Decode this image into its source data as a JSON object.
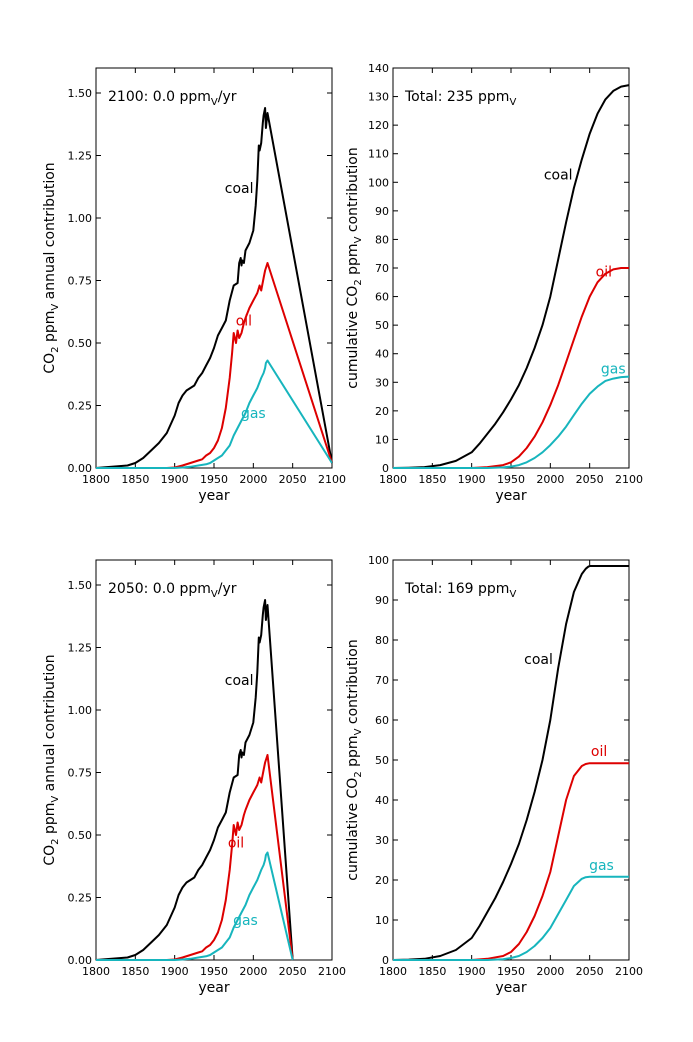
{
  "chart_data": [
    {
      "type": "line",
      "id": "top-left",
      "annotation_prefix": "2100: 0.0 ppm",
      "annotation_suffix": "/yr",
      "xlabel": "year",
      "ylabel_parts": [
        "CO",
        "2",
        " ppm",
        "V",
        " annual contribution"
      ],
      "xlim": [
        1800,
        2100
      ],
      "ylim": [
        0,
        1.6
      ],
      "xticks": [
        1800,
        1850,
        1900,
        1950,
        2000,
        2050,
        2100
      ],
      "yticks": [
        0,
        0.25,
        0.5,
        0.75,
        1.0,
        1.25,
        1.5
      ],
      "ytick_labels": [
        "0.00",
        "0.25",
        "0.50",
        "0.75",
        "1.00",
        "1.25",
        "1.50"
      ],
      "series": [
        {
          "name": "coal",
          "color": "#000000",
          "label_pos": [
            1982,
            1.1
          ],
          "x": [
            1800,
            1820,
            1840,
            1850,
            1860,
            1870,
            1880,
            1890,
            1900,
            1905,
            1910,
            1915,
            1920,
            1925,
            1930,
            1935,
            1940,
            1945,
            1950,
            1955,
            1960,
            1965,
            1970,
            1975,
            1980,
            1982,
            1984,
            1985,
            1986,
            1988,
            1990,
            1995,
            2000,
            2003,
            2005,
            2007,
            2008,
            2010,
            2012,
            2013,
            2015,
            2016,
            2018,
            2100
          ],
          "y": [
            0,
            0.005,
            0.01,
            0.02,
            0.04,
            0.07,
            0.1,
            0.14,
            0.21,
            0.26,
            0.29,
            0.31,
            0.32,
            0.33,
            0.36,
            0.38,
            0.41,
            0.44,
            0.48,
            0.53,
            0.56,
            0.59,
            0.67,
            0.73,
            0.74,
            0.82,
            0.84,
            0.81,
            0.83,
            0.82,
            0.87,
            0.9,
            0.95,
            1.05,
            1.15,
            1.29,
            1.27,
            1.3,
            1.38,
            1.41,
            1.44,
            1.36,
            1.42,
            0.02
          ]
        },
        {
          "name": "oil",
          "color": "#dd0000",
          "label_pos": [
            1988,
            0.57
          ],
          "x": [
            1800,
            1890,
            1900,
            1910,
            1920,
            1930,
            1935,
            1940,
            1945,
            1950,
            1955,
            1960,
            1965,
            1970,
            1973,
            1975,
            1978,
            1980,
            1982,
            1985,
            1988,
            1990,
            1995,
            2000,
            2005,
            2008,
            2010,
            2013,
            2015,
            2016,
            2018,
            2100
          ],
          "y": [
            0,
            0,
            0.002,
            0.01,
            0.02,
            0.03,
            0.035,
            0.05,
            0.06,
            0.08,
            0.11,
            0.16,
            0.24,
            0.36,
            0.46,
            0.54,
            0.5,
            0.55,
            0.52,
            0.54,
            0.58,
            0.6,
            0.64,
            0.67,
            0.7,
            0.73,
            0.71,
            0.76,
            0.79,
            0.8,
            0.82,
            0.02
          ]
        },
        {
          "name": "gas",
          "color": "#17b5bd",
          "label_pos": [
            2000,
            0.2
          ],
          "x": [
            1800,
            1900,
            1910,
            1920,
            1930,
            1940,
            1945,
            1950,
            1955,
            1960,
            1965,
            1970,
            1975,
            1980,
            1985,
            1990,
            1995,
            2000,
            2005,
            2010,
            2013,
            2015,
            2016,
            2018,
            2100
          ],
          "y": [
            0,
            0,
            0.002,
            0.005,
            0.01,
            0.015,
            0.02,
            0.03,
            0.04,
            0.05,
            0.07,
            0.09,
            0.13,
            0.16,
            0.19,
            0.22,
            0.26,
            0.29,
            0.32,
            0.36,
            0.38,
            0.4,
            0.42,
            0.43,
            0.02
          ]
        }
      ]
    },
    {
      "type": "line",
      "id": "top-right",
      "annotation_prefix": "Total: 235 ppm",
      "annotation_suffix": "",
      "xlabel": "year",
      "ylabel_parts": [
        "cumulative CO",
        "2",
        " ppm",
        "V",
        " contribution"
      ],
      "xlim": [
        1800,
        2100
      ],
      "ylim": [
        0,
        140
      ],
      "xticks": [
        1800,
        1850,
        1900,
        1950,
        2000,
        2050,
        2100
      ],
      "yticks": [
        0,
        10,
        20,
        30,
        40,
        50,
        60,
        70,
        80,
        90,
        100,
        110,
        120,
        130,
        140
      ],
      "ytick_labels": [
        "0",
        "10",
        "20",
        "30",
        "40",
        "50",
        "60",
        "70",
        "80",
        "90",
        "100",
        "110",
        "120",
        "130",
        "140"
      ],
      "series": [
        {
          "name": "coal",
          "color": "#000000",
          "label_pos": [
            2010,
            101
          ],
          "x": [
            1800,
            1820,
            1840,
            1860,
            1880,
            1900,
            1910,
            1920,
            1930,
            1940,
            1950,
            1960,
            1970,
            1980,
            1990,
            2000,
            2010,
            2020,
            2030,
            2040,
            2050,
            2060,
            2070,
            2080,
            2090,
            2100
          ],
          "y": [
            0,
            0.1,
            0.3,
            1,
            2.5,
            5.5,
            8.5,
            12,
            15.5,
            19.5,
            24,
            29,
            35,
            42,
            50,
            60,
            73,
            86,
            98,
            108,
            117,
            124,
            129,
            132,
            133.5,
            134
          ]
        },
        {
          "name": "oil",
          "color": "#dd0000",
          "label_pos": [
            2068,
            67
          ],
          "x": [
            1800,
            1900,
            1920,
            1940,
            1950,
            1960,
            1970,
            1980,
            1990,
            2000,
            2010,
            2020,
            2030,
            2040,
            2050,
            2060,
            2070,
            2080,
            2090,
            2100
          ],
          "y": [
            0,
            0,
            0.3,
            1,
            2,
            4,
            7,
            11,
            16,
            22,
            29,
            37,
            45,
            53,
            60,
            65,
            68,
            69.5,
            70,
            70
          ]
        },
        {
          "name": "gas",
          "color": "#17b5bd",
          "label_pos": [
            2080,
            33
          ],
          "x": [
            1800,
            1920,
            1940,
            1950,
            1960,
            1970,
            1980,
            1990,
            2000,
            2010,
            2020,
            2030,
            2040,
            2050,
            2060,
            2070,
            2080,
            2090,
            2100
          ],
          "y": [
            0,
            0,
            0.2,
            0.5,
            1,
            2,
            3.5,
            5.5,
            8,
            11,
            14.5,
            18.5,
            22.5,
            26,
            28.5,
            30.5,
            31.3,
            31.8,
            32
          ]
        }
      ]
    },
    {
      "type": "line",
      "id": "bottom-left",
      "annotation_prefix": "2050: 0.0 ppm",
      "annotation_suffix": "/yr",
      "xlabel": "year",
      "ylabel_parts": [
        "CO",
        "2",
        " ppm",
        "V",
        " annual contribution"
      ],
      "xlim": [
        1800,
        2100
      ],
      "ylim": [
        0,
        1.6
      ],
      "xticks": [
        1800,
        1850,
        1900,
        1950,
        2000,
        2050,
        2100
      ],
      "yticks": [
        0,
        0.25,
        0.5,
        0.75,
        1.0,
        1.25,
        1.5
      ],
      "ytick_labels": [
        "0.00",
        "0.25",
        "0.50",
        "0.75",
        "1.00",
        "1.25",
        "1.50"
      ],
      "series": [
        {
          "name": "coal",
          "color": "#000000",
          "label_pos": [
            1982,
            1.1
          ],
          "x": [
            1800,
            1820,
            1840,
            1850,
            1860,
            1870,
            1880,
            1890,
            1900,
            1905,
            1910,
            1915,
            1920,
            1925,
            1930,
            1935,
            1940,
            1945,
            1950,
            1955,
            1960,
            1965,
            1970,
            1975,
            1980,
            1982,
            1984,
            1985,
            1986,
            1988,
            1990,
            1995,
            2000,
            2003,
            2005,
            2007,
            2008,
            2010,
            2012,
            2013,
            2015,
            2016,
            2018,
            2050
          ],
          "y": [
            0,
            0.005,
            0.01,
            0.02,
            0.04,
            0.07,
            0.1,
            0.14,
            0.21,
            0.26,
            0.29,
            0.31,
            0.32,
            0.33,
            0.36,
            0.38,
            0.41,
            0.44,
            0.48,
            0.53,
            0.56,
            0.59,
            0.67,
            0.73,
            0.74,
            0.82,
            0.84,
            0.81,
            0.83,
            0.82,
            0.87,
            0.9,
            0.95,
            1.05,
            1.15,
            1.29,
            1.27,
            1.3,
            1.38,
            1.41,
            1.44,
            1.36,
            1.42,
            0.0
          ]
        },
        {
          "name": "oil",
          "color": "#dd0000",
          "label_pos": [
            1978,
            0.45
          ],
          "x": [
            1800,
            1890,
            1900,
            1910,
            1920,
            1930,
            1935,
            1940,
            1945,
            1950,
            1955,
            1960,
            1965,
            1970,
            1973,
            1975,
            1978,
            1980,
            1982,
            1985,
            1988,
            1990,
            1995,
            2000,
            2005,
            2008,
            2010,
            2013,
            2015,
            2016,
            2018,
            2050
          ],
          "y": [
            0,
            0,
            0.002,
            0.01,
            0.02,
            0.03,
            0.035,
            0.05,
            0.06,
            0.08,
            0.11,
            0.16,
            0.24,
            0.36,
            0.46,
            0.54,
            0.5,
            0.55,
            0.52,
            0.54,
            0.58,
            0.6,
            0.64,
            0.67,
            0.7,
            0.73,
            0.71,
            0.76,
            0.79,
            0.8,
            0.82,
            0.0
          ]
        },
        {
          "name": "gas",
          "color": "#17b5bd",
          "label_pos": [
            1990,
            0.14
          ],
          "x": [
            1800,
            1900,
            1910,
            1920,
            1930,
            1940,
            1945,
            1950,
            1955,
            1960,
            1965,
            1970,
            1975,
            1980,
            1985,
            1990,
            1995,
            2000,
            2005,
            2010,
            2013,
            2015,
            2016,
            2018,
            2050
          ],
          "y": [
            0,
            0,
            0.002,
            0.005,
            0.01,
            0.015,
            0.02,
            0.03,
            0.04,
            0.05,
            0.07,
            0.09,
            0.13,
            0.16,
            0.19,
            0.22,
            0.26,
            0.29,
            0.32,
            0.36,
            0.38,
            0.4,
            0.42,
            0.43,
            0.0
          ]
        }
      ]
    },
    {
      "type": "line",
      "id": "bottom-right",
      "annotation_prefix": "Total: 169 ppm",
      "annotation_suffix": "",
      "xlabel": "year",
      "ylabel_parts": [
        "cumulative CO",
        "2",
        " ppm",
        "V",
        " contribution"
      ],
      "xlim": [
        1800,
        2100
      ],
      "ylim": [
        0,
        100
      ],
      "xticks": [
        1800,
        1850,
        1900,
        1950,
        2000,
        2050,
        2100
      ],
      "yticks": [
        0,
        10,
        20,
        30,
        40,
        50,
        60,
        70,
        80,
        90,
        100
      ],
      "ytick_labels": [
        "0",
        "10",
        "20",
        "30",
        "40",
        "50",
        "60",
        "70",
        "80",
        "90",
        "100"
      ],
      "series": [
        {
          "name": "coal",
          "color": "#000000",
          "label_pos": [
            1985,
            74
          ],
          "x": [
            1800,
            1820,
            1840,
            1860,
            1880,
            1900,
            1910,
            1920,
            1930,
            1940,
            1950,
            1960,
            1970,
            1980,
            1990,
            2000,
            2010,
            2020,
            2030,
            2040,
            2045,
            2048,
            2050,
            2100
          ],
          "y": [
            0,
            0.1,
            0.3,
            1,
            2.5,
            5.5,
            8.5,
            12,
            15.5,
            19.5,
            24,
            29,
            35,
            42,
            50,
            60,
            73,
            84,
            92,
            96.5,
            97.8,
            98.3,
            98.5,
            98.5
          ]
        },
        {
          "name": "oil",
          "color": "#dd0000",
          "label_pos": [
            2062,
            51
          ],
          "x": [
            1800,
            1900,
            1920,
            1940,
            1950,
            1960,
            1970,
            1980,
            1990,
            2000,
            2010,
            2020,
            2030,
            2040,
            2045,
            2050,
            2100
          ],
          "y": [
            0,
            0,
            0.3,
            1,
            2,
            4,
            7,
            11,
            16,
            22,
            31,
            40,
            46,
            48.5,
            49,
            49.2,
            49.2
          ]
        },
        {
          "name": "gas",
          "color": "#17b5bd",
          "label_pos": [
            2065,
            22.5
          ],
          "x": [
            1800,
            1920,
            1940,
            1950,
            1960,
            1970,
            1980,
            1990,
            2000,
            2010,
            2020,
            2030,
            2040,
            2045,
            2050,
            2100
          ],
          "y": [
            0,
            0,
            0.2,
            0.5,
            1,
            2,
            3.5,
            5.5,
            8,
            11.5,
            15,
            18.5,
            20.3,
            20.7,
            20.8,
            20.8
          ]
        }
      ]
    }
  ]
}
